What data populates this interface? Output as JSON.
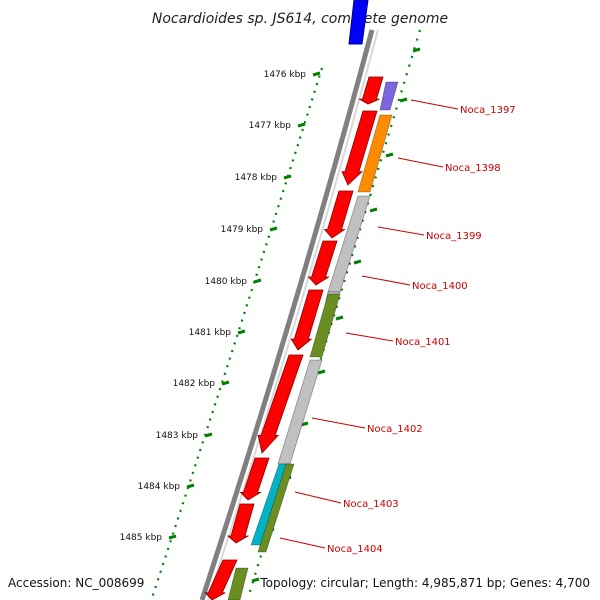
{
  "title": "Nocardioides sp. JS614, complete genome",
  "footer": {
    "accession": "Accession: NC_008699",
    "topology": "Topology: circular; Length: 4,985,871 bp; Genes: 4,700"
  },
  "ruler": {
    "unit": "kbp",
    "ticks": [
      {
        "label": "1476 kbp"
      },
      {
        "label": "1477 kbp"
      },
      {
        "label": "1478 kbp"
      },
      {
        "label": "1479 kbp"
      },
      {
        "label": "1480 kbp"
      },
      {
        "label": "1481 kbp"
      },
      {
        "label": "1482 kbp"
      },
      {
        "label": "1483 kbp"
      },
      {
        "label": "1484 kbp"
      },
      {
        "label": "1485 kbp"
      }
    ]
  },
  "colors": {
    "backbone": "#808080",
    "cds": "#ff0000",
    "ruler": "#008000",
    "label": "#cc0000",
    "blue": "#0000ff",
    "purple": "#7a66dd",
    "orange": "#ff8c00",
    "grey": "#c0c0c0",
    "olive": "#6b8e23",
    "cyan": "#00b3c7"
  },
  "genes": [
    {
      "name": "Noca_1397",
      "color": "purple"
    },
    {
      "name": "Noca_1398",
      "color": "orange"
    },
    {
      "name": "Noca_1399",
      "color": "grey"
    },
    {
      "name": "Noca_1400",
      "color": "grey"
    },
    {
      "name": "Noca_1401",
      "color": "olive"
    },
    {
      "name": "Noca_1402",
      "color": "grey"
    },
    {
      "name": "Noca_1403",
      "color": "cyan"
    },
    {
      "name": "Noca_1404",
      "color": "olive"
    }
  ]
}
